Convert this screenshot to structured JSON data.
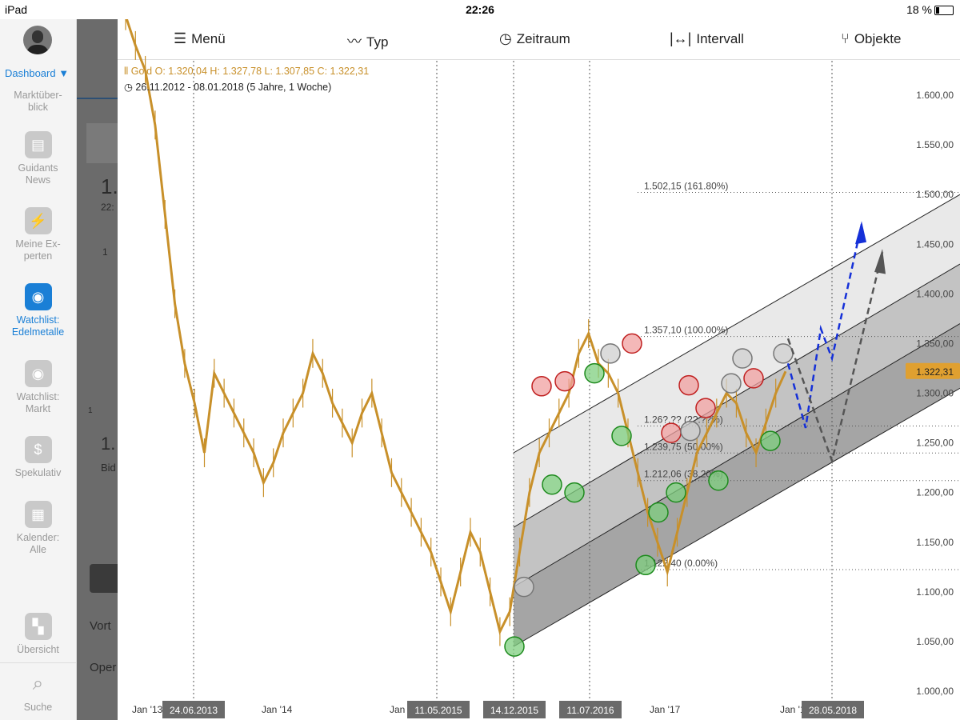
{
  "status": {
    "device": "iPad",
    "time": "22:26",
    "battery": "18 %"
  },
  "sidebar": {
    "dashboard_label": "Dashboard",
    "partial_label": "Marktüber-\nblick",
    "items": [
      {
        "label": "Guidants\nNews",
        "icon": "news-icon"
      },
      {
        "label": "Meine Ex-\nperten",
        "icon": "lightning-icon"
      },
      {
        "label": "Watchlist:\nEdelmetalle",
        "icon": "eye-icon",
        "active": true
      },
      {
        "label": "Watchlist:\nMarkt",
        "icon": "eye-icon"
      },
      {
        "label": "Spekulativ",
        "icon": "dollar-icon"
      },
      {
        "label": "Kalender:\nAlle",
        "icon": "calendar-icon"
      },
      {
        "label": "Übersicht",
        "icon": "grid-icon"
      },
      {
        "label": "Suche",
        "icon": "search-icon"
      }
    ]
  },
  "background_panel": {
    "text1": "1.",
    "text2": "22:",
    "text3": "1",
    "text4": "1",
    "text5": "1.",
    "text6": "Bid",
    "text7": "Vort",
    "text8": "Oper"
  },
  "toolbar": {
    "menu": "Menü",
    "type": "Typ",
    "timeframe": "Zeitraum",
    "interval": "Intervall",
    "objects": "Objekte"
  },
  "chart_info": {
    "symbol_line": "Gold  O: 1.320,04  H: 1.327,78  L: 1.307,85  C: 1.322,31",
    "range_line": "26.11.2012 - 08.01.2018  (5 Jahre, 1 Woche)"
  },
  "colors": {
    "candle": "#c8902a",
    "accent": "#1a7fd6",
    "price_badge": "#e0a030"
  },
  "chart_data": {
    "type": "line",
    "title": "Gold",
    "ylim": [
      965,
      1650
    ],
    "y_ticks": [
      "1.000,00",
      "1.050,00",
      "1.100,00",
      "1.150,00",
      "1.200,00",
      "1.250,00",
      "1.300,00",
      "1.350,00",
      "1.400,00",
      "1.450,00",
      "1.500,00",
      "1.550,00",
      "1.600,00"
    ],
    "x_labels": [
      "Jan '13",
      "Jan '14",
      "Jan '15",
      "Jan '17",
      "Jan '18"
    ],
    "date_badges": [
      "24.06.2013",
      "11.05.2015",
      "14.12.2015",
      "11.07.2016",
      "28.05.2018"
    ],
    "current_price": "1.322,31",
    "fib_levels": [
      {
        "label": "1.502,15 (161.80%)"
      },
      {
        "label": "1.357,10 (100.00%)"
      },
      {
        "label": "1.26?,?? (??.??%)"
      },
      {
        "label": "1.239,75 (50.00%)"
      },
      {
        "label": "1.212,06 (38.20%)"
      },
      {
        "label": "1.122,40 (0.00%)"
      }
    ],
    "series": [
      {
        "values": [
          1680,
          1650,
          1625,
          1570,
          1480,
          1390,
          1330,
          1290,
          1240,
          1320,
          1300,
          1280,
          1260,
          1240,
          1210,
          1230,
          1260,
          1280,
          1300,
          1340,
          1320,
          1290,
          1270,
          1250,
          1280,
          1300,
          1260,
          1220,
          1200,
          1180,
          1160,
          1140,
          1110,
          1080,
          1120,
          1160,
          1140,
          1100,
          1060,
          1080,
          1140,
          1200,
          1240,
          1260,
          1280,
          1300,
          1340,
          1360,
          1330,
          1320,
          1300,
          1260,
          1220,
          1180,
          1150,
          1120,
          1160,
          1200,
          1240,
          1260,
          1280,
          1300,
          1290,
          1260,
          1240,
          1270,
          1300,
          1322
        ]
      }
    ]
  }
}
